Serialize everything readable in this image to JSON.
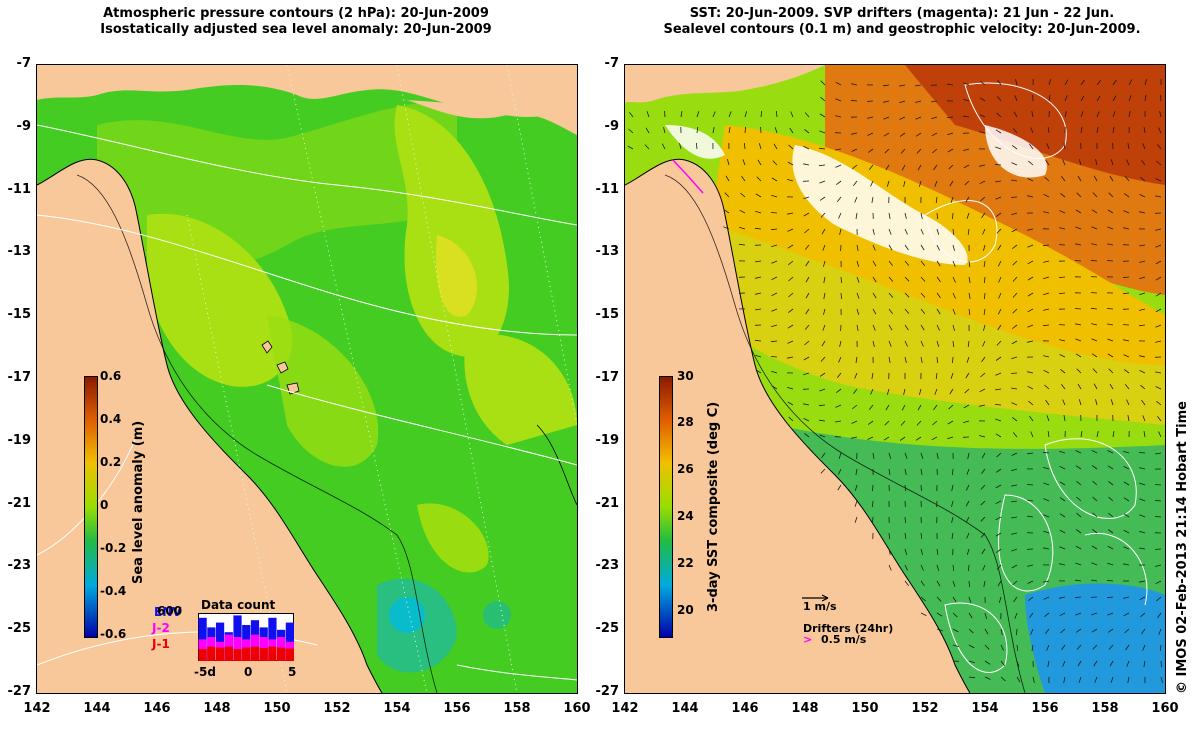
{
  "left_panel": {
    "title_line1": "Atmospheric pressure contours (2 hPa): 20-Jun-2009",
    "title_line2": "Isostatically adjusted sea level anomaly: 20-Jun-2009",
    "colorbar_label": "Sea level anomaly (m)",
    "colorbar_ticks": [
      "0.6",
      "0.4",
      "0.2",
      "0",
      "-0.2",
      "-0.4",
      "-0.6"
    ],
    "colorbar_colors": [
      "#8b1a00",
      "#e06000",
      "#f0c000",
      "#99dd00",
      "#22bb44",
      "#00aadd",
      "#0000aa"
    ],
    "data_count": {
      "title": "Data count",
      "series_labels": [
        "ENV",
        "J-2",
        "J-1"
      ],
      "series_colors": [
        "#1010ee",
        "#ff00ff",
        "#ee0000"
      ],
      "overlap_label": "600",
      "x_ticks": [
        "-5d",
        "0",
        "5"
      ],
      "values_env": [
        0.9,
        0.7,
        0.8,
        0.6,
        0.95,
        0.75,
        0.85,
        0.7,
        0.9,
        0.65,
        0.8
      ],
      "values_j2": [
        0.45,
        0.5,
        0.4,
        0.55,
        0.5,
        0.45,
        0.55,
        0.5,
        0.45,
        0.5,
        0.4
      ],
      "values_j1": [
        0.25,
        0.3,
        0.28,
        0.3,
        0.25,
        0.28,
        0.3,
        0.27,
        0.3,
        0.28,
        0.26
      ]
    }
  },
  "right_panel": {
    "title_line1": "SST: 20-Jun-2009. SVP drifters (magenta): 21 Jun - 22 Jun.",
    "title_line2": "Sealevel contours (0.1 m) and geostrophic velocity: 20-Jun-2009.",
    "colorbar_label": "3-day SST composite (deg C)",
    "colorbar_ticks": [
      "30",
      "28",
      "26",
      "24",
      "22",
      "20"
    ],
    "colorbar_colors": [
      "#8b1a00",
      "#e06000",
      "#f0c000",
      "#99dd00",
      "#22bb44",
      "#00aadd",
      "#0000aa"
    ],
    "velocity_scale_label": "1 m/s",
    "drifters_label": "Drifters (24hr)",
    "drifter_speed_label": "0.5 m/s"
  },
  "axes": {
    "lat_ticks": [
      "-7",
      "-9",
      "-11",
      "-13",
      "-15",
      "-17",
      "-19",
      "-21",
      "-23",
      "-25",
      "-27"
    ],
    "lon_ticks": [
      "142",
      "144",
      "146",
      "148",
      "150",
      "152",
      "154",
      "156",
      "158",
      "160"
    ],
    "lat_range": [
      -27,
      -7
    ],
    "lon_range": [
      142,
      160
    ]
  },
  "colors": {
    "land": "#f8c89a",
    "sea_green": "#44cc22",
    "sea_yellowgreen": "#99dd11",
    "contour": "#ffffff"
  },
  "copyright": "© IMOS 02-Feb-2013 21:14 Hobart Time"
}
